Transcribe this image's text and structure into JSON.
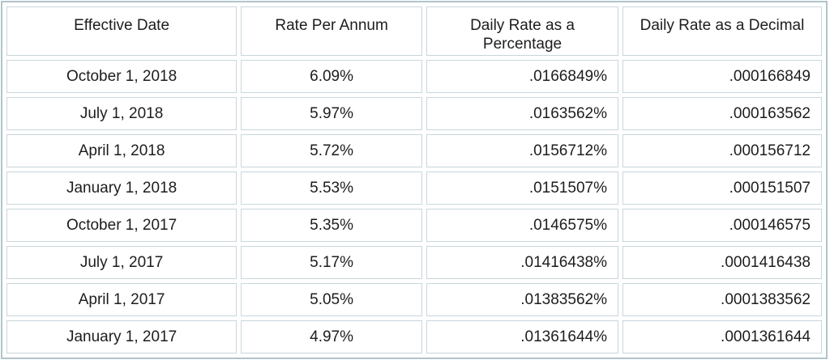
{
  "chart_data": {
    "type": "table",
    "columns": [
      "Effective Date",
      "Rate Per Annum",
      "Daily Rate as a\nPercentage",
      "Daily Rate as a Decimal"
    ],
    "rows": [
      [
        "October 1, 2018",
        "6.09%",
        ".0166849%",
        ".000166849"
      ],
      [
        "July 1, 2018",
        "5.97%",
        ".0163562%",
        ".000163562"
      ],
      [
        "April 1, 2018",
        "5.72%",
        ".0156712%",
        ".000156712"
      ],
      [
        "January 1, 2018",
        "5.53%",
        ".0151507%",
        ".000151507"
      ],
      [
        "October 1, 2017",
        "5.35%",
        ".0146575%",
        ".000146575"
      ],
      [
        "July 1, 2017",
        "5.17%",
        ".01416438%",
        ".0001416438"
      ],
      [
        "April 1, 2017",
        "5.05%",
        ".01383562%",
        ".0001383562"
      ],
      [
        "January 1, 2017",
        "4.97%",
        ".01361644%",
        ".0001361644"
      ]
    ]
  },
  "colors": {
    "outer_border": "#b2c4cc",
    "cell_border": "#c9d6db",
    "text": "#1d1d1d",
    "background": "#ffffff"
  }
}
